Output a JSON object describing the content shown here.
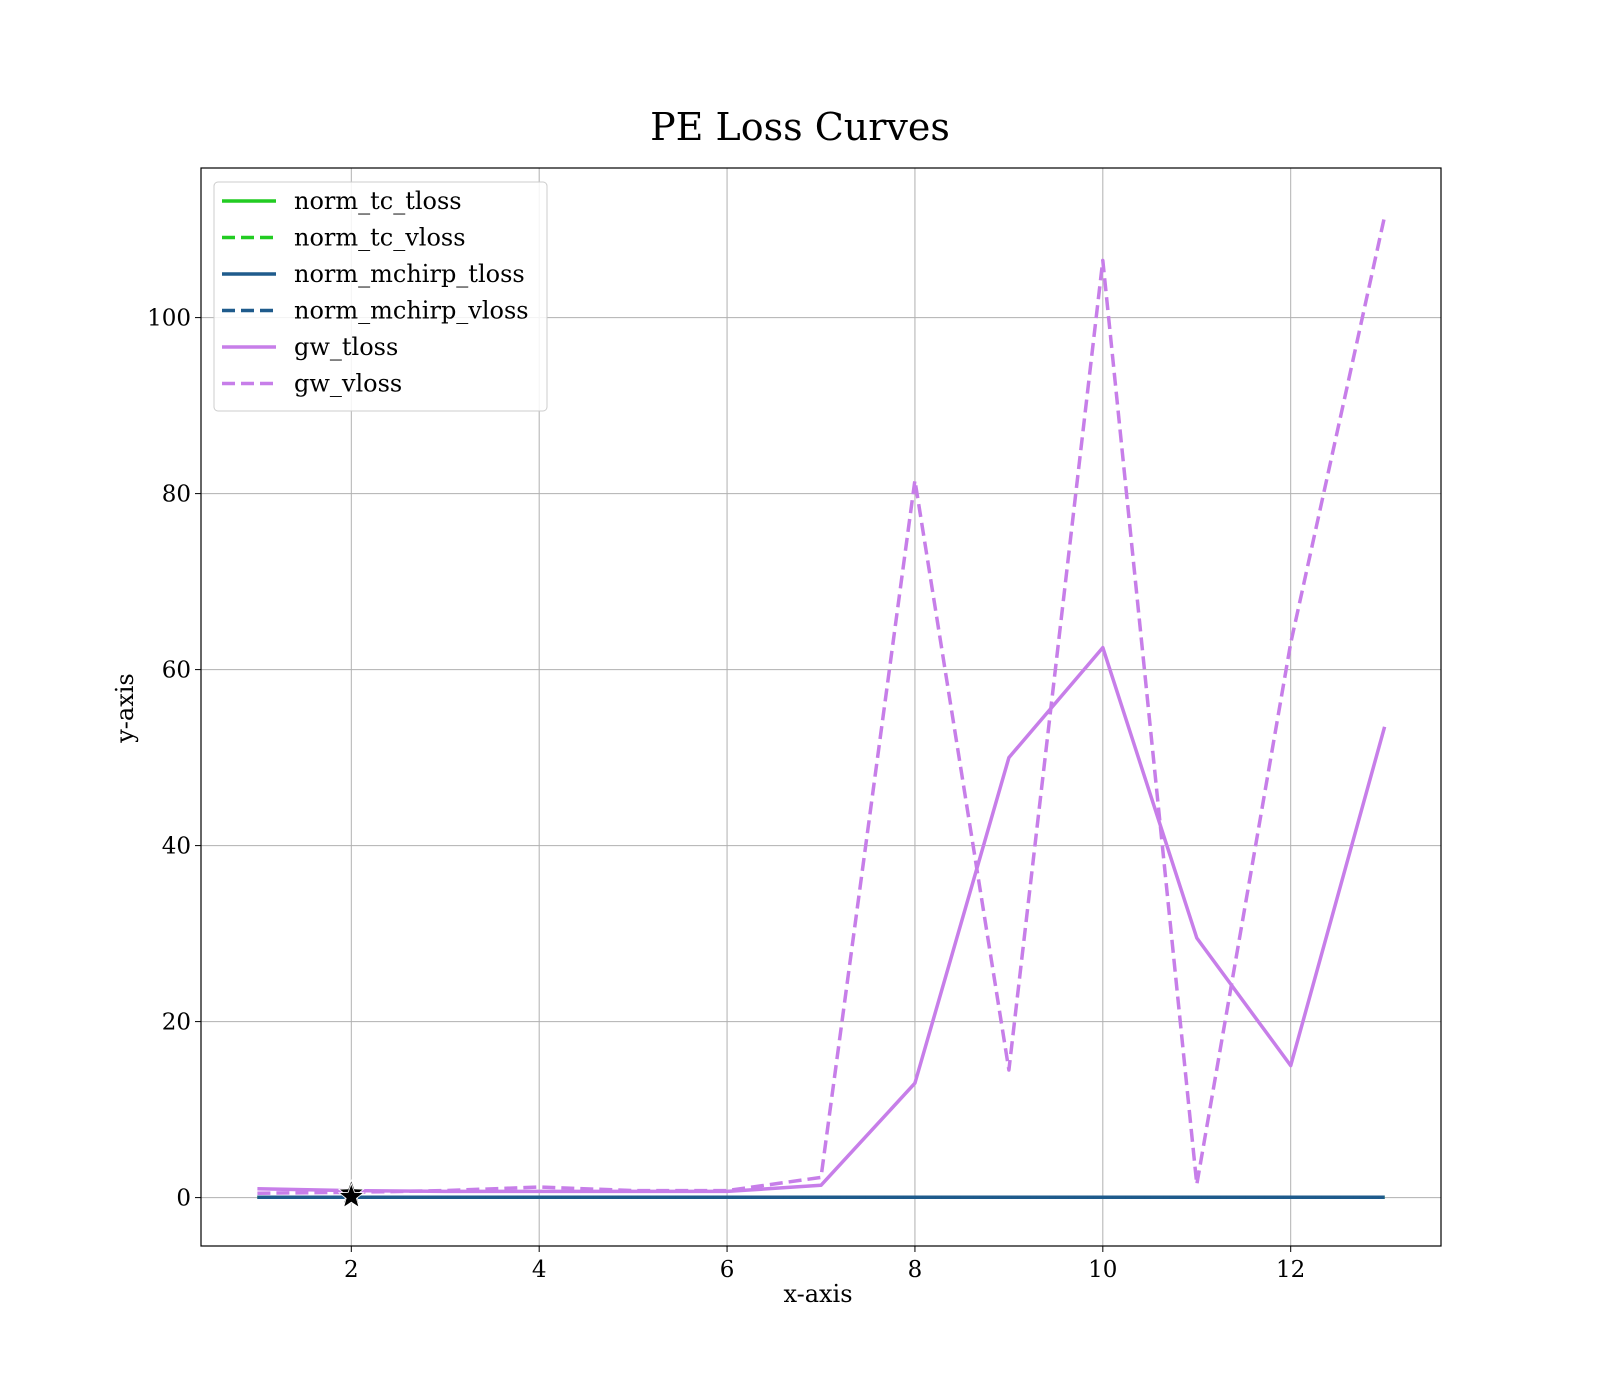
{
  "chart_data": {
    "type": "line",
    "title": "PE Loss Curves",
    "xlabel": "x-axis",
    "ylabel": "y-axis",
    "xlim": [
      0.4,
      13.6
    ],
    "ylim": [
      -5.5,
      117
    ],
    "xticks": [
      2,
      4,
      6,
      8,
      10,
      12
    ],
    "yticks": [
      0,
      20,
      40,
      60,
      80,
      100
    ],
    "grid": true,
    "legend_position": "top-left",
    "x": [
      1,
      2,
      3,
      4,
      5,
      6,
      7,
      8,
      9,
      10,
      11,
      12,
      13
    ],
    "series": [
      {
        "name": "norm_tc_tloss",
        "color": "#22cc22",
        "dash": "solid",
        "values": [
          0.05,
          0.05,
          0.05,
          0.05,
          0.05,
          0.05,
          0.05,
          0.05,
          0.05,
          0.05,
          0.05,
          0.05,
          0.05
        ]
      },
      {
        "name": "norm_tc_vloss",
        "color": "#22cc22",
        "dash": "dashed",
        "values": [
          0.05,
          0.05,
          0.05,
          0.05,
          0.05,
          0.05,
          0.05,
          0.05,
          0.05,
          0.05,
          0.05,
          0.05,
          0.05
        ]
      },
      {
        "name": "norm_mchirp_tloss",
        "color": "#1f5b8c",
        "dash": "solid",
        "values": [
          0.05,
          0.05,
          0.05,
          0.05,
          0.05,
          0.05,
          0.05,
          0.05,
          0.05,
          0.05,
          0.05,
          0.05,
          0.05
        ]
      },
      {
        "name": "norm_mchirp_vloss",
        "color": "#1f5b8c",
        "dash": "dashed",
        "values": [
          0.05,
          0.05,
          0.05,
          0.05,
          0.05,
          0.05,
          0.05,
          0.05,
          0.05,
          0.05,
          0.05,
          0.05,
          0.05
        ]
      },
      {
        "name": "gw_tloss",
        "color": "#c77ee9",
        "dash": "solid",
        "values": [
          1.0,
          0.8,
          0.7,
          0.7,
          0.7,
          0.7,
          1.4,
          13.0,
          50.0,
          62.5,
          29.5,
          15.0,
          53.5
        ]
      },
      {
        "name": "gw_vloss",
        "color": "#c77ee9",
        "dash": "dashed",
        "values": [
          0.5,
          0.6,
          0.8,
          1.2,
          0.8,
          0.8,
          2.3,
          81.5,
          14.5,
          106.5,
          1.5,
          63.0,
          111.5
        ]
      }
    ],
    "markers": [
      {
        "shape": "star",
        "color": "#000000",
        "x": 2,
        "y": 0.5
      },
      {
        "shape": "star",
        "color": "#000000",
        "x": 2,
        "y": 0.1
      }
    ]
  }
}
